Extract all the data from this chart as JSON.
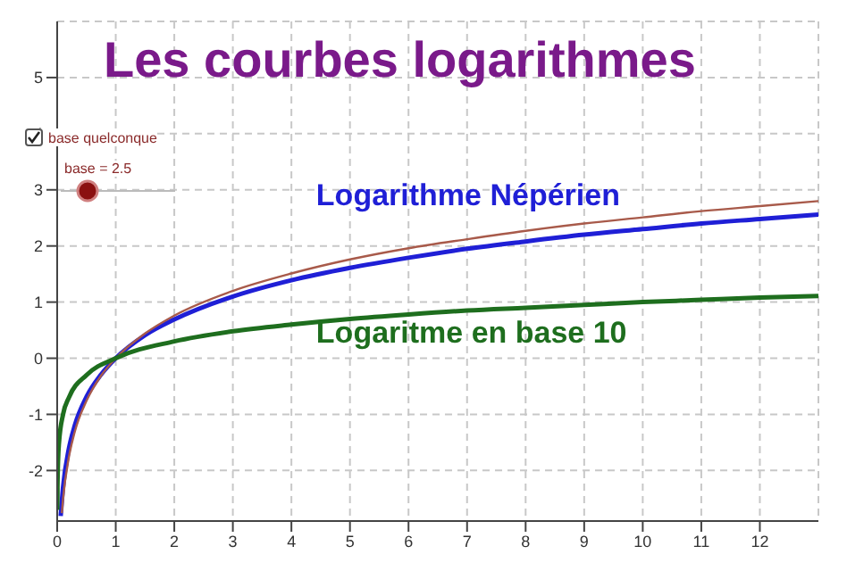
{
  "chart_data": {
    "type": "line",
    "title": "Les courbes logarithmes",
    "xlim": [
      0,
      13
    ],
    "ylim": [
      -2.9,
      6
    ],
    "xticks": [
      0,
      1,
      2,
      3,
      4,
      5,
      6,
      7,
      8,
      9,
      10,
      11,
      12
    ],
    "yticks": [
      -2,
      -1,
      0,
      1,
      2,
      3,
      4,
      5
    ],
    "grid": true,
    "series": [
      {
        "name": "Logarithme Népérien",
        "color": "#1f1fd6",
        "x": [
          0.06,
          0.1,
          0.2,
          0.3,
          0.5,
          0.75,
          1,
          1.5,
          2,
          3,
          4,
          5,
          6,
          7,
          8,
          9,
          10,
          11,
          12,
          13
        ],
        "values": [
          -2.81,
          -2.3,
          -1.61,
          -1.2,
          -0.69,
          -0.29,
          0,
          0.41,
          0.69,
          1.1,
          1.39,
          1.61,
          1.79,
          1.95,
          2.08,
          2.2,
          2.3,
          2.4,
          2.48,
          2.56
        ]
      },
      {
        "color": "#a85a4a",
        "x": [
          0.08,
          0.1,
          0.2,
          0.3,
          0.5,
          0.75,
          1,
          1.5,
          2,
          3,
          4,
          5,
          6,
          7,
          8,
          9,
          10,
          11,
          12,
          13
        ],
        "values": [
          -2.76,
          -2.51,
          -1.76,
          -1.31,
          -0.76,
          -0.31,
          0,
          0.44,
          0.76,
          1.2,
          1.51,
          1.76,
          1.96,
          2.12,
          2.27,
          2.4,
          2.51,
          2.62,
          2.71,
          2.8
        ]
      },
      {
        "name": "Logaritme en base 10",
        "color": "#1e6e1e",
        "x": [
          0.002,
          0.005,
          0.01,
          0.03,
          0.1,
          0.2,
          0.5,
          1,
          2,
          3,
          4,
          5,
          6,
          7,
          8,
          9,
          10,
          11,
          12,
          13
        ],
        "values": [
          -2.7,
          -2.3,
          -2,
          -1.52,
          -1,
          -0.7,
          -0.3,
          0,
          0.3,
          0.48,
          0.6,
          0.7,
          0.78,
          0.85,
          0.9,
          0.95,
          1,
          1.04,
          1.08,
          1.11
        ]
      }
    ],
    "annotations": [
      "base quelconque",
      "base = 2.5"
    ]
  }
}
